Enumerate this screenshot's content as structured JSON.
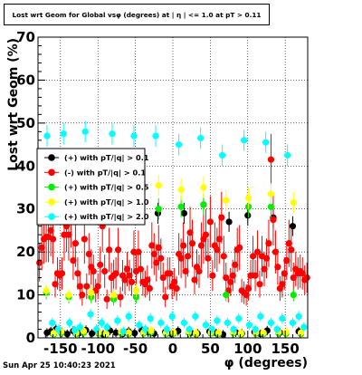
{
  "title": "Lost wrt Geom for Global vsφ (degrees) at | η | <= 1.0 at pT > 0.11",
  "timestamp": "Sun Apr 25 10:40:23 2021",
  "chart_data": {
    "type": "scatter",
    "xlabel": "φ (degrees)",
    "ylabel": "Lost wrt Geom (%)",
    "xlim": [
      -180,
      180
    ],
    "ylim": [
      0,
      70
    ],
    "grid": true,
    "x_tick_labels": [
      "-150",
      "-100",
      "-50",
      "0",
      "50",
      "100",
      "150"
    ],
    "x_tick_values": [
      -150,
      -100,
      -50,
      0,
      50,
      100,
      150
    ],
    "y_tick_labels": [
      "0",
      "10",
      "20",
      "30",
      "40",
      "50",
      "60",
      "70"
    ],
    "y_tick_values": [
      0,
      10,
      20,
      30,
      40,
      50,
      60,
      70
    ],
    "legend_position": "upper-left",
    "series": [
      {
        "name": "(+) with pT/|q| > 0.1",
        "color": "#000000",
        "points": [
          [
            -168,
            1.2
          ],
          [
            -163,
            1.5
          ],
          [
            -156,
            2.0
          ],
          [
            -148,
            1.3
          ],
          [
            -141,
            0.9
          ],
          [
            -133,
            1.6
          ],
          [
            -125,
            1.1
          ],
          [
            -116,
            1.8
          ],
          [
            -108,
            1.0
          ],
          [
            -100,
            1.4
          ],
          [
            -93,
            0.8
          ],
          [
            -84,
            1.7
          ],
          [
            -76,
            1.2
          ],
          [
            -67,
            0.9
          ],
          [
            -59,
            1.5
          ],
          [
            -51,
            1.1
          ],
          [
            -42,
            1.9
          ],
          [
            -33,
            1.3
          ],
          [
            -25,
            1.0
          ],
          [
            -20,
            29.0
          ],
          [
            -10,
            1.4
          ],
          [
            -2,
            0.9
          ],
          [
            7,
            1.6
          ],
          [
            15,
            29.0
          ],
          [
            24,
            1.2
          ],
          [
            33,
            1.0
          ],
          [
            41,
            31.0
          ],
          [
            49,
            1.5
          ],
          [
            58,
            1.1
          ],
          [
            67,
            0.8
          ],
          [
            75,
            27.0
          ],
          [
            84,
            1.3
          ],
          [
            92,
            1.0
          ],
          [
            100,
            28.5
          ],
          [
            109,
            1.4
          ],
          [
            117,
            0.9
          ],
          [
            126,
            1.7
          ],
          [
            134,
            28.0
          ],
          [
            143,
            1.2
          ],
          [
            151,
            1.0
          ],
          [
            160,
            26.0
          ],
          [
            168,
            1.5
          ]
        ]
      },
      {
        "name": "(-) with pT/|q| > 0.1",
        "color": "#ff0000",
        "points": [
          [
            -178,
            17.5
          ],
          [
            -175,
            21.0
          ],
          [
            -172,
            23.0
          ],
          [
            -169,
            23.5
          ],
          [
            -166,
            23.5
          ],
          [
            -163,
            25.0
          ],
          [
            -160,
            23.0
          ],
          [
            -157,
            12.5
          ],
          [
            -154,
            15.0
          ],
          [
            -151,
            14.5
          ],
          [
            -148,
            15.0
          ],
          [
            -145,
            24.0
          ],
          [
            -142,
            26.0
          ],
          [
            -139,
            24.0
          ],
          [
            -136,
            27.0
          ],
          [
            -133,
            18.0
          ],
          [
            -130,
            22.0
          ],
          [
            -127,
            15.0
          ],
          [
            -124,
            12.0
          ],
          [
            -121,
            10.0
          ],
          [
            -118,
            23.0
          ],
          [
            -115,
            12.0
          ],
          [
            -112,
            19.5
          ],
          [
            -109,
            16.5
          ],
          [
            -106,
            15.5
          ],
          [
            -103,
            11.0
          ],
          [
            -100,
            12.0
          ],
          [
            -97,
            17.0
          ],
          [
            -94,
            26.0
          ],
          [
            -91,
            15.5
          ],
          [
            -88,
            9.0
          ],
          [
            -85,
            20.5
          ],
          [
            -82,
            14.0
          ],
          [
            -79,
            14.5
          ],
          [
            -76,
            15.0
          ],
          [
            -73,
            20.5
          ],
          [
            -70,
            9.5
          ],
          [
            -67,
            14.5
          ],
          [
            -64,
            13.5
          ],
          [
            -61,
            16.0
          ],
          [
            -58,
            14.5
          ],
          [
            -55,
            13.0
          ],
          [
            -52,
            20.0
          ],
          [
            -49,
            15.5
          ],
          [
            -46,
            20.0
          ],
          [
            -43,
            16.0
          ],
          [
            -40,
            13.0
          ],
          [
            -37,
            12.5
          ],
          [
            -34,
            13.5
          ],
          [
            -31,
            11.5
          ],
          [
            -28,
            21.5
          ],
          [
            -25,
            19.5
          ],
          [
            -22,
            17.5
          ],
          [
            -19,
            21.0
          ],
          [
            -16,
            18.5
          ],
          [
            -13,
            14.0
          ],
          [
            -10,
            9.5
          ],
          [
            -7,
            15.0
          ],
          [
            -4,
            15.0
          ],
          [
            -1,
            12.0
          ],
          [
            2,
            13.0
          ],
          [
            5,
            11.5
          ],
          [
            8,
            19.5
          ],
          [
            11,
            18.5
          ],
          [
            14,
            21.5
          ],
          [
            17,
            15.5
          ],
          [
            20,
            19.0
          ],
          [
            23,
            24.5
          ],
          [
            26,
            22.0
          ],
          [
            29,
            13.5
          ],
          [
            32,
            16.5
          ],
          [
            35,
            15.5
          ],
          [
            38,
            21.5
          ],
          [
            41,
            23.0
          ],
          [
            44,
            24.0
          ],
          [
            47,
            18.5
          ],
          [
            50,
            27.0
          ],
          [
            53,
            14.5
          ],
          [
            56,
            21.5
          ],
          [
            59,
            20.5
          ],
          [
            62,
            23.0
          ],
          [
            65,
            28.0
          ],
          [
            68,
            19.0
          ],
          [
            71,
            14.0
          ],
          [
            74,
            11.0
          ],
          [
            77,
            13.0
          ],
          [
            80,
            14.5
          ],
          [
            83,
            17.0
          ],
          [
            86,
            20.5
          ],
          [
            89,
            21.0
          ],
          [
            92,
            11.0
          ],
          [
            95,
            10.5
          ],
          [
            98,
            10.0
          ],
          [
            101,
            11.5
          ],
          [
            104,
            14.5
          ],
          [
            107,
            19.0
          ],
          [
            110,
            14.5
          ],
          [
            113,
            20.0
          ],
          [
            116,
            12.5
          ],
          [
            119,
            19.0
          ],
          [
            122,
            16.0
          ],
          [
            125,
            18.5
          ],
          [
            128,
            22.0
          ],
          [
            131,
            41.5
          ],
          [
            134,
            27.5
          ],
          [
            137,
            20.0
          ],
          [
            140,
            16.5
          ],
          [
            143,
            11.5
          ],
          [
            146,
            12.5
          ],
          [
            149,
            15.0
          ],
          [
            152,
            18.0
          ],
          [
            155,
            22.0
          ],
          [
            158,
            20.5
          ],
          [
            161,
            14.0
          ],
          [
            164,
            16.0
          ],
          [
            167,
            15.0
          ],
          [
            170,
            15.5
          ],
          [
            173,
            15.0
          ],
          [
            176,
            13.5
          ],
          [
            179,
            14.0
          ]
        ]
      },
      {
        "name": "(+) with pT/|q| > 0.5",
        "color": "#00ee00",
        "points": [
          [
            -169,
            10.5
          ],
          [
            -159,
            0.8
          ],
          [
            -149,
            1.1
          ],
          [
            -139,
            9.5
          ],
          [
            -129,
            0.9
          ],
          [
            -119,
            1.2
          ],
          [
            -109,
            9.5
          ],
          [
            -99,
            1.0
          ],
          [
            -89,
            0.8
          ],
          [
            -79,
            9.0
          ],
          [
            -69,
            1.1
          ],
          [
            -59,
            0.9
          ],
          [
            -49,
            9.5
          ],
          [
            -39,
            1.0
          ],
          [
            -29,
            1.3
          ],
          [
            -19,
            30.0
          ],
          [
            -9,
            0.9
          ],
          [
            1,
            1.0
          ],
          [
            11,
            30.5
          ],
          [
            21,
            1.2
          ],
          [
            31,
            0.8
          ],
          [
            41,
            31.0
          ],
          [
            51,
            1.0
          ],
          [
            61,
            0.9
          ],
          [
            71,
            10.0
          ],
          [
            81,
            1.1
          ],
          [
            91,
            0.8
          ],
          [
            101,
            30.5
          ],
          [
            111,
            1.0
          ],
          [
            121,
            0.9
          ],
          [
            131,
            30.5
          ],
          [
            141,
            1.1
          ],
          [
            151,
            1.0
          ],
          [
            161,
            10.0
          ],
          [
            171,
            0.9
          ]
        ]
      },
      {
        "name": "(+) with pT/|q| > 1.0",
        "color": "#ffff00",
        "points": [
          [
            -169,
            11.0
          ],
          [
            -159,
            1.1
          ],
          [
            -149,
            1.5
          ],
          [
            -139,
            10.0
          ],
          [
            -129,
            1.2
          ],
          [
            -119,
            1.6
          ],
          [
            -109,
            10.5
          ],
          [
            -99,
            1.3
          ],
          [
            -89,
            1.0
          ],
          [
            -79,
            10.0
          ],
          [
            -69,
            1.4
          ],
          [
            -59,
            1.2
          ],
          [
            -49,
            11.0
          ],
          [
            -39,
            1.3
          ],
          [
            -29,
            1.7
          ],
          [
            -19,
            35.5
          ],
          [
            -9,
            1.2
          ],
          [
            1,
            1.3
          ],
          [
            11,
            34.5
          ],
          [
            21,
            1.5
          ],
          [
            31,
            1.1
          ],
          [
            41,
            35.0
          ],
          [
            51,
            1.3
          ],
          [
            61,
            1.2
          ],
          [
            71,
            32.0
          ],
          [
            81,
            1.4
          ],
          [
            91,
            1.1
          ],
          [
            101,
            32.5
          ],
          [
            111,
            1.3
          ],
          [
            121,
            1.2
          ],
          [
            131,
            33.5
          ],
          [
            141,
            1.4
          ],
          [
            151,
            1.3
          ],
          [
            161,
            31.5
          ],
          [
            171,
            1.2
          ]
        ]
      },
      {
        "name": "(+) with pT/|q| > 2.0",
        "color": "#00ffff",
        "points": [
          [
            -168,
            47.0
          ],
          [
            -161,
            3.5
          ],
          [
            -153,
            2.0
          ],
          [
            -146,
            47.5
          ],
          [
            -138,
            3.5
          ],
          [
            -131,
            1.8
          ],
          [
            -124,
            2.5
          ],
          [
            -117,
            48.0
          ],
          [
            -110,
            5.5
          ],
          [
            -102,
            2.0
          ],
          [
            -95,
            3.5
          ],
          [
            -88,
            2.5
          ],
          [
            -81,
            47.5
          ],
          [
            -74,
            4.0
          ],
          [
            -66,
            1.5
          ],
          [
            -59,
            5.0
          ],
          [
            -52,
            47.0
          ],
          [
            -45,
            3.0
          ],
          [
            -37,
            2.0
          ],
          [
            -30,
            4.5
          ],
          [
            -23,
            47.0
          ],
          [
            -16,
            3.5
          ],
          [
            -8,
            2.0
          ],
          [
            -1,
            5.0
          ],
          [
            8,
            45.0
          ],
          [
            15,
            3.5
          ],
          [
            22,
            2.0
          ],
          [
            30,
            5.0
          ],
          [
            37,
            46.5
          ],
          [
            44,
            3.0
          ],
          [
            52,
            2.0
          ],
          [
            59,
            4.0
          ],
          [
            66,
            42.5
          ],
          [
            73,
            3.5
          ],
          [
            81,
            2.0
          ],
          [
            88,
            4.5
          ],
          [
            95,
            46.0
          ],
          [
            102,
            3.0
          ],
          [
            110,
            2.0
          ],
          [
            117,
            5.0
          ],
          [
            124,
            45.5
          ],
          [
            131,
            3.5
          ],
          [
            139,
            2.0
          ],
          [
            146,
            4.5
          ],
          [
            153,
            42.5
          ],
          [
            160,
            3.5
          ],
          [
            168,
            5.0
          ],
          [
            175,
            2.5
          ]
        ]
      }
    ]
  }
}
